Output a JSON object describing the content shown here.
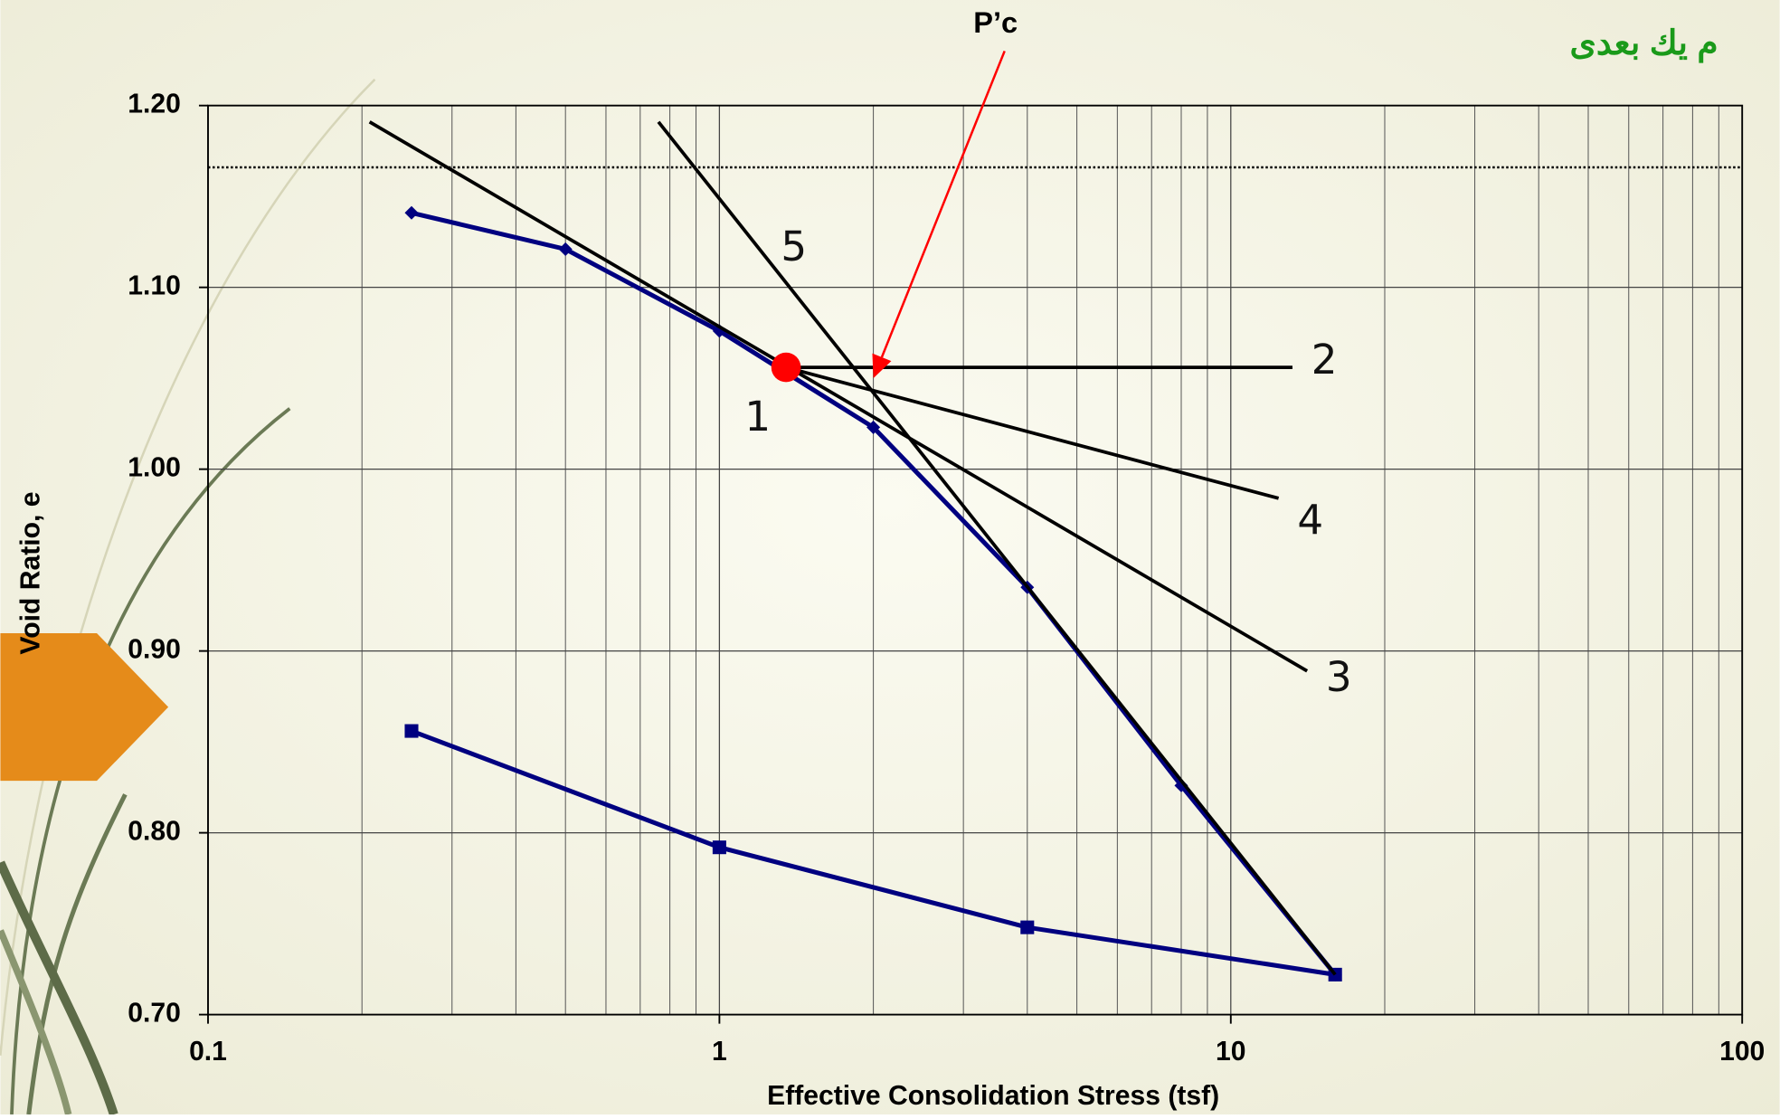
{
  "header_text": "م يك بعدى",
  "chart_data": {
    "type": "line",
    "x_label": "Effective Consolidation Stress (tsf)",
    "y_label": "Void Ratio, e",
    "xscale": "log",
    "xlim": [
      0.1,
      100
    ],
    "xticks": [
      0.1,
      1,
      10,
      100
    ],
    "ylim": [
      0.7,
      1.2
    ],
    "yticks": [
      {
        "value": 0.7,
        "label": "0.70"
      },
      {
        "value": 0.8,
        "label": "0.80"
      },
      {
        "value": 0.9,
        "label": "0.90"
      },
      {
        "value": 1.0,
        "label": "1.00"
      },
      {
        "value": 1.1,
        "label": "1.10"
      },
      {
        "value": 1.2,
        "label": "1.20"
      }
    ],
    "grid": true,
    "minor_grid": true,
    "series": [
      {
        "color": "#000080",
        "marker": "diamond",
        "x": [
          0.25,
          0.5,
          1,
          2,
          4,
          8,
          16
        ],
        "values": [
          1.141,
          1.121,
          1.076,
          1.023,
          0.935,
          0.826,
          0.722
        ]
      },
      {
        "color": "#000080",
        "marker": "square",
        "x": [
          0.25,
          1,
          4,
          16
        ],
        "values": [
          0.856,
          0.792,
          0.748,
          0.722
        ]
      }
    ],
    "reference_line": {
      "y": 1.166,
      "style": "dotted"
    },
    "point": {
      "label": "1",
      "x": 1.35,
      "y": 1.056,
      "color": "#ff0000"
    },
    "construction_lines": [
      {
        "label": "2",
        "x": [
          1.35,
          13.2
        ],
        "y": [
          1.056,
          1.056
        ]
      },
      {
        "label": "3",
        "x": [
          0.207,
          14.1
        ],
        "y": [
          1.191,
          0.889
        ]
      },
      {
        "label": "4",
        "x": [
          1.35,
          12.4
        ],
        "y": [
          1.056,
          0.984
        ]
      },
      {
        "label": "5",
        "x": [
          0.76,
          16
        ],
        "y": [
          1.191,
          0.722
        ]
      }
    ],
    "annotation": {
      "text": "P’c",
      "x": 2.0,
      "y": 1.05,
      "color": "#ff0000"
    }
  }
}
